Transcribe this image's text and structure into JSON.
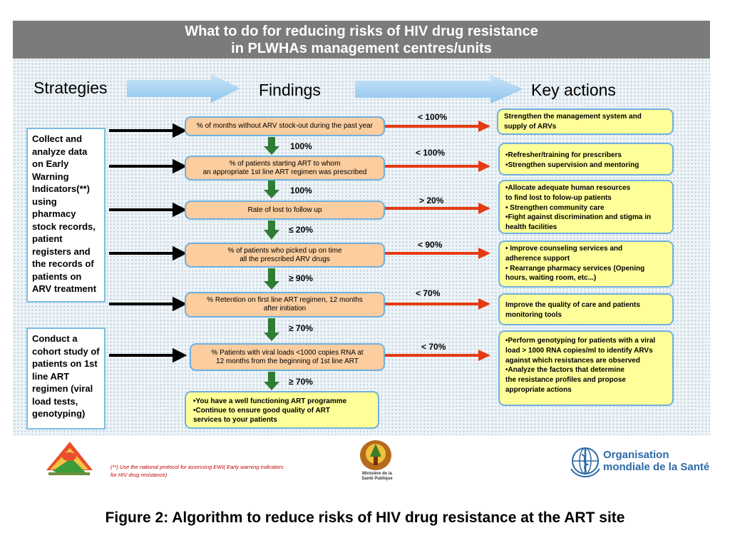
{
  "header": {
    "title_line1": "What to do for reducing risks of HIV drug resistance",
    "title_line2": "in PLWHAs management centres/units"
  },
  "columns": {
    "strategies": "Strategies",
    "findings": "Findings",
    "key_actions": "Key actions"
  },
  "strategies": [
    "Collect and analyze data on Early Warning Indicators(**) using pharmacy stock records, patient registers and the records of patients on ARV treatment",
    "Conduct a cohort study of patients on 1st line ART regimen (viral load tests, genotyping)"
  ],
  "findings": [
    "%  of months without ARV stock-out during the past year",
    "% of patients starting ART to whom\nan appropriate 1st line ART regimen was prescribed",
    "Rate of lost to follow up",
    "% of patients who picked up on time\nall the prescribed ARV drugs",
    "% Retention on first line ART regimen, 12 months\nafter initiation",
    "% Patients with viral loads <1000 copies RNA at\n12 months from the beginning of 1st line ART",
    "•You have a well functioning  ART programme\n•Continue to ensure good quality of ART\n   services to your patients"
  ],
  "down_thresholds": [
    "100%",
    "100%",
    "≤ 20%",
    "≥ 90%",
    "≥ 70%",
    "≥ 70%"
  ],
  "right_thresholds": [
    "< 100%",
    "< 100%",
    "> 20%",
    "< 90%",
    "< 70%",
    "< 70%"
  ],
  "actions": [
    "Strengthen the management system and\nsupply of ARVs",
    "•Refresher/training  for prescribers\n•Strengthen supervision and mentoring",
    "•Allocate adequate human resources\n to find lost to folow-up patients\n• Strengthen community care\n•Fight against discrimination and stigma in\n  health facilities",
    "• Improve counseling services and\n   adherence support\n• Rearrange pharmacy services (Opening\nhours, waiting room, etc...)",
    "Improve the quality of care and patients\nmonitoring tools",
    "•Perform genotyping for patients with a viral\n load > 1000 RNA copies/ml to identify ARVs\n against which resistances are observed\n•Analyze the factors that determine\n the resistance profiles and propose\n appropriate actions"
  ],
  "footnote": {
    "line1": "(**) Use the national protocol for assessing EWI( Early warning indicators",
    "line2": "for HIV drug resistance)"
  },
  "logos": {
    "ministry_line1": "Ministère de la",
    "ministry_line2": "Santé Publique",
    "who_line1": "Organisation",
    "who_line2": "mondiale de la Santé"
  },
  "caption": "Figure 2: Algorithm to reduce risks of HIV drug resistance at the ART site",
  "colors": {
    "header": "#7b7b7b",
    "finding_fill": "#fbcd9f",
    "action_fill": "#ffff99",
    "down_arrow": "#2e7d32",
    "right_arrow": "#e63a12",
    "column_arrow": "#a9d3f3",
    "box_border": "#6fb0de"
  },
  "icons": [
    "national-emblem-logo",
    "ministry-seal-logo",
    "who-emblem-logo"
  ]
}
